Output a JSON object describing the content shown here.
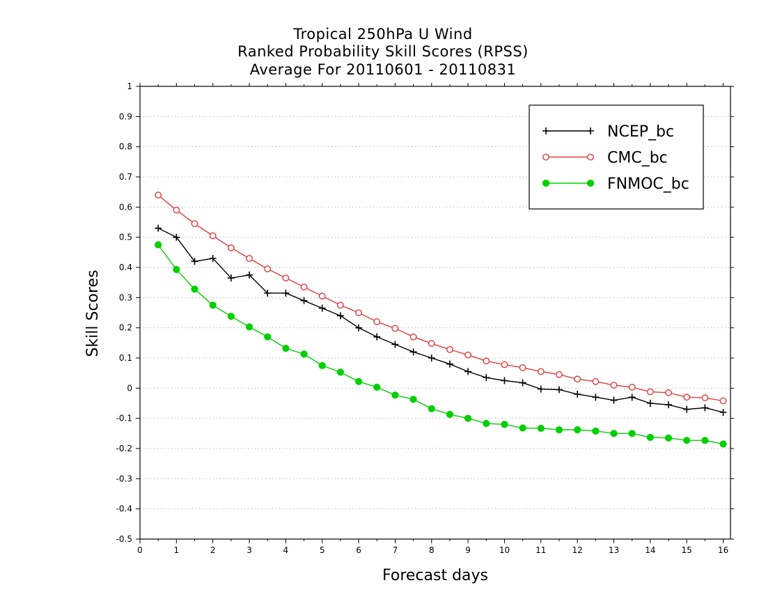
{
  "chart_data": {
    "type": "line",
    "title": [
      "Tropical 250hPa U Wind",
      "Ranked Probability Skill Scores (RPSS)",
      "Average For 20110601 - 20110831"
    ],
    "xlabel": "Forecast days",
    "ylabel": "Skill Scores",
    "xlim": [
      0,
      16.2
    ],
    "ylim": [
      -0.5,
      1
    ],
    "xticks": [
      "0",
      "1",
      "2",
      "3",
      "4",
      "5",
      "6",
      "7",
      "8",
      "9",
      "10",
      "11",
      "12",
      "13",
      "14",
      "15",
      "16"
    ],
    "xtick_values": [
      0,
      1,
      2,
      3,
      4,
      5,
      6,
      7,
      8,
      9,
      10,
      11,
      12,
      13,
      14,
      15,
      16
    ],
    "yticks": [
      "1",
      "0.9",
      "0.8",
      "0.7",
      "0.6",
      "0.5",
      "0.4",
      "0.3",
      "0.2",
      "0.1",
      "0",
      "-0.1",
      "-0.2",
      "-0.3",
      "-0.4",
      "-0.5"
    ],
    "ytick_values": [
      1,
      0.9,
      0.8,
      0.7,
      0.6,
      0.5,
      0.4,
      0.3,
      0.2,
      0.1,
      0,
      -0.1,
      -0.2,
      -0.3,
      -0.4,
      -0.5
    ],
    "grid": "horizontal-dotted",
    "legend_position": "top-right",
    "x": [
      0.5,
      1,
      1.5,
      2,
      2.5,
      3,
      3.5,
      4,
      4.5,
      5,
      5.5,
      6,
      6.5,
      7,
      7.5,
      8,
      8.5,
      9,
      9.5,
      10,
      10.5,
      11,
      11.5,
      12,
      12.5,
      13,
      13.5,
      14,
      14.5,
      15,
      15.5,
      16
    ],
    "series": [
      {
        "name": "NCEP_bc",
        "color": "#000000",
        "marker": "plus",
        "values": [
          0.53,
          0.5,
          0.42,
          0.43,
          0.365,
          0.375,
          0.315,
          0.315,
          0.29,
          0.265,
          0.24,
          0.2,
          0.17,
          0.145,
          0.12,
          0.1,
          0.08,
          0.055,
          0.035,
          0.025,
          0.018,
          -0.003,
          -0.005,
          -0.02,
          -0.03,
          -0.04,
          -0.03,
          -0.05,
          -0.055,
          -0.07,
          -0.065,
          -0.08
        ]
      },
      {
        "name": "CMC_bc",
        "color": "#e03c3c",
        "marker": "open-circle",
        "values": [
          0.64,
          0.59,
          0.545,
          0.505,
          0.465,
          0.43,
          0.395,
          0.365,
          0.335,
          0.305,
          0.275,
          0.25,
          0.22,
          0.198,
          0.17,
          0.148,
          0.128,
          0.11,
          0.09,
          0.078,
          0.068,
          0.055,
          0.045,
          0.03,
          0.022,
          0.01,
          0.003,
          -0.012,
          -0.015,
          -0.03,
          -0.032,
          -0.042
        ]
      },
      {
        "name": "FNMOC_bc",
        "color": "#00d000",
        "marker": "filled-circle",
        "values": [
          0.475,
          0.393,
          0.328,
          0.275,
          0.238,
          0.203,
          0.17,
          0.132,
          0.113,
          0.075,
          0.053,
          0.022,
          0.003,
          -0.023,
          -0.037,
          -0.068,
          -0.087,
          -0.1,
          -0.117,
          -0.12,
          -0.132,
          -0.133,
          -0.138,
          -0.138,
          -0.142,
          -0.15,
          -0.15,
          -0.163,
          -0.165,
          -0.173,
          -0.173,
          -0.185
        ]
      }
    ]
  }
}
